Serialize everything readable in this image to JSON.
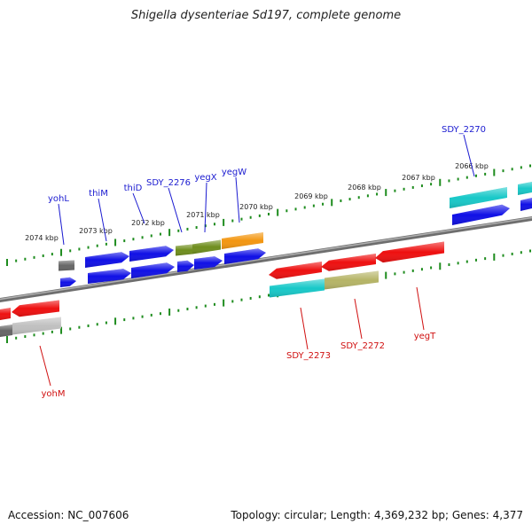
{
  "title": "Shigella dysenteriae Sd197, complete genome",
  "footer": {
    "accession": "Accession: NC_007606",
    "summary": "Topology: circular; Length: 4,369,232 bp; Genes: 4,377"
  },
  "colors": {
    "backbone": "#808080",
    "tick": "#1e8c1e",
    "label_forward": "#1a1ad0",
    "label_reverse": "#d01010",
    "gene_blue": "#1010e6",
    "gene_red": "#ee1010",
    "gene_cyan": "#18c8c8",
    "gene_olive": "#6f8e1e",
    "gene_orange": "#f39610",
    "gene_gray": "#666666",
    "gene_khaki": "#b5b466",
    "gene_lightgray": "#c0c0c0"
  },
  "kbp_labels": [
    "2074 kbp",
    "2073 kbp",
    "2072 kbp",
    "2071 kbp",
    "2070 kbp",
    "2069 kbp",
    "2068 kbp",
    "2067 kbp",
    "2066 kbp"
  ],
  "gene_labels": {
    "top": [
      "yohL",
      "thiM",
      "thiD",
      "SDY_2276",
      "yegX",
      "yegW",
      "SDY_2270"
    ],
    "bottom": [
      "SDY_2273",
      "SDY_2272",
      "yegT",
      "yohM"
    ]
  }
}
